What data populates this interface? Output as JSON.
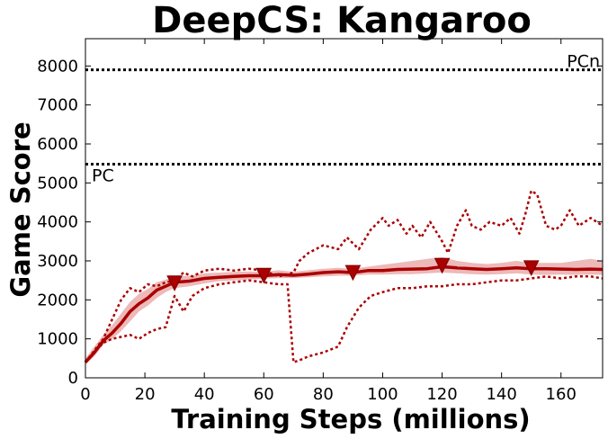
{
  "chart_data": {
    "type": "line",
    "title": "DeepCS: Kangaroo",
    "xlabel": "Training Steps (millions)",
    "ylabel": "Game Score",
    "xlim": [
      0,
      174
    ],
    "ylim": [
      0,
      8700
    ],
    "xticks": [
      0,
      20,
      40,
      60,
      80,
      100,
      120,
      140,
      160
    ],
    "yticks": [
      0,
      1000,
      2000,
      3000,
      4000,
      5000,
      6000,
      7000,
      8000
    ],
    "grid": false,
    "colors": {
      "main": "#aa0000",
      "band": "#e8a8a8",
      "reference": "#000000"
    },
    "reference_lines": [
      {
        "name": "PCn",
        "value": 7900
      },
      {
        "name": "PC",
        "value": 5480
      }
    ],
    "series": [
      {
        "style": "solid-mean",
        "x": [
          0,
          3,
          6,
          9,
          12,
          15,
          18,
          21,
          24,
          27,
          30,
          35,
          40,
          45,
          50,
          55,
          60,
          65,
          70,
          75,
          80,
          85,
          90,
          95,
          100,
          105,
          110,
          115,
          120,
          125,
          130,
          135,
          140,
          145,
          150,
          155,
          160,
          165,
          170,
          174
        ],
        "y": [
          400,
          650,
          950,
          1150,
          1400,
          1700,
          1900,
          2050,
          2250,
          2350,
          2450,
          2480,
          2550,
          2580,
          2600,
          2620,
          2620,
          2650,
          2630,
          2660,
          2700,
          2720,
          2700,
          2750,
          2750,
          2780,
          2790,
          2800,
          2850,
          2820,
          2800,
          2780,
          2800,
          2820,
          2800,
          2800,
          2790,
          2780,
          2790,
          2780
        ],
        "band_low": [
          350,
          550,
          850,
          1000,
          1200,
          1450,
          1700,
          1850,
          2050,
          2200,
          2300,
          2350,
          2420,
          2480,
          2500,
          2520,
          2540,
          2560,
          2560,
          2580,
          2600,
          2620,
          2620,
          2650,
          2650,
          2660,
          2660,
          2680,
          2700,
          2680,
          2660,
          2650,
          2660,
          2680,
          2650,
          2640,
          2650,
          2640,
          2650,
          2640
        ],
        "band_high": [
          500,
          800,
          1100,
          1350,
          1650,
          1950,
          2150,
          2280,
          2450,
          2520,
          2600,
          2620,
          2680,
          2700,
          2720,
          2730,
          2720,
          2760,
          2720,
          2760,
          2800,
          2820,
          2800,
          2850,
          2900,
          2950,
          3000,
          3050,
          3100,
          3000,
          2950,
          2920,
          2950,
          3000,
          2950,
          2950,
          2950,
          3000,
          3050,
          3000
        ]
      },
      {
        "style": "dotted-upper",
        "x": [
          0,
          3,
          6,
          9,
          12,
          15,
          18,
          21,
          24,
          27,
          30,
          33,
          36,
          40,
          45,
          50,
          55,
          60,
          65,
          70,
          72,
          75,
          80,
          85,
          88,
          92,
          96,
          100,
          102,
          105,
          108,
          110,
          113,
          116,
          120,
          122,
          125,
          128,
          130,
          133,
          136,
          140,
          143,
          146,
          148,
          150,
          152,
          155,
          158,
          160,
          163,
          166,
          170,
          174
        ],
        "y": [
          400,
          700,
          1000,
          1500,
          2000,
          2300,
          2200,
          2400,
          2350,
          2450,
          2500,
          2700,
          2600,
          2750,
          2800,
          2750,
          2800,
          2750,
          2600,
          2700,
          3000,
          3200,
          3400,
          3300,
          3600,
          3300,
          3800,
          4100,
          3900,
          4050,
          3700,
          3900,
          3600,
          4000,
          3500,
          3200,
          3900,
          4300,
          3900,
          3800,
          4000,
          3900,
          4100,
          3700,
          4200,
          4800,
          4700,
          3900,
          3800,
          3900,
          4300,
          3900,
          4100,
          3900
        ]
      },
      {
        "style": "dotted-lower",
        "x": [
          0,
          3,
          6,
          9,
          12,
          15,
          18,
          21,
          24,
          27,
          30,
          33,
          36,
          40,
          45,
          50,
          55,
          60,
          65,
          68,
          70,
          72,
          75,
          80,
          85,
          88,
          92,
          96,
          100,
          105,
          110,
          115,
          120,
          125,
          130,
          135,
          140,
          145,
          150,
          155,
          160,
          165,
          170,
          174
        ],
        "y": [
          400,
          650,
          900,
          1000,
          1050,
          1100,
          1000,
          1150,
          1250,
          1300,
          2100,
          1700,
          2100,
          2300,
          2400,
          2450,
          2500,
          2450,
          2400,
          2400,
          400,
          450,
          550,
          650,
          800,
          1300,
          1800,
          2100,
          2200,
          2300,
          2300,
          2350,
          2350,
          2400,
          2400,
          2450,
          2500,
          2500,
          2550,
          2600,
          2550,
          2600,
          2600,
          2550
        ]
      }
    ],
    "markers": [
      {
        "x": 30,
        "y": 2450
      },
      {
        "x": 60,
        "y": 2650
      },
      {
        "x": 90,
        "y": 2720
      },
      {
        "x": 120,
        "y": 2900
      },
      {
        "x": 150,
        "y": 2840
      }
    ]
  }
}
